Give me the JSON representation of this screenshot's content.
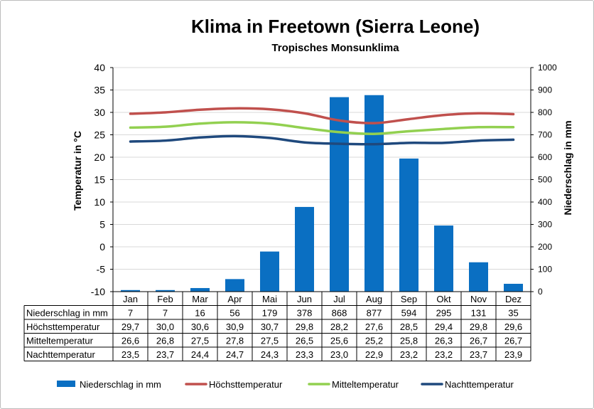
{
  "chart_data": {
    "type": "bar",
    "title": "Klima in Freetown (Sierra Leone)",
    "subtitle": "Tropisches Monsunklima",
    "categories": [
      "Jan",
      "Feb",
      "Mar",
      "Apr",
      "Mai",
      "Jun",
      "Jul",
      "Aug",
      "Sep",
      "Okt",
      "Nov",
      "Dez"
    ],
    "ylabel_left": "Temperatur in °C",
    "ylabel_right": "Niederschlag in mm",
    "ylim_left": [
      -10,
      40
    ],
    "ylim_right": [
      0,
      1000
    ],
    "yticks_left": [
      "40",
      "35",
      "30",
      "25",
      "20",
      "15",
      "10",
      "5",
      "0",
      "-5",
      "-10"
    ],
    "yticks_right": [
      "1000",
      "900",
      "800",
      "700",
      "600",
      "500",
      "400",
      "300",
      "200",
      "100",
      "0"
    ],
    "series": [
      {
        "name": "Niederschlag in mm",
        "kind": "bar",
        "axis": "right",
        "color": "#0a6fc2",
        "values": [
          7,
          7,
          16,
          56,
          179,
          378,
          868,
          877,
          594,
          295,
          131,
          35
        ],
        "labels": [
          "7",
          "7",
          "16",
          "56",
          "179",
          "378",
          "868",
          "877",
          "594",
          "295",
          "131",
          "35"
        ]
      },
      {
        "name": "Höchsttemperatur",
        "kind": "line",
        "axis": "left",
        "color": "#c0504d",
        "values": [
          29.7,
          30.0,
          30.6,
          30.9,
          30.7,
          29.8,
          28.2,
          27.6,
          28.5,
          29.4,
          29.8,
          29.6
        ],
        "labels": [
          "29,7",
          "30,0",
          "30,6",
          "30,9",
          "30,7",
          "29,8",
          "28,2",
          "27,6",
          "28,5",
          "29,4",
          "29,8",
          "29,6"
        ]
      },
      {
        "name": "Mitteltemperatur",
        "kind": "line",
        "axis": "left",
        "color": "#92d050",
        "values": [
          26.6,
          26.8,
          27.5,
          27.8,
          27.5,
          26.5,
          25.6,
          25.2,
          25.8,
          26.3,
          26.7,
          26.7
        ],
        "labels": [
          "26,6",
          "26,8",
          "27,5",
          "27,8",
          "27,5",
          "26,5",
          "25,6",
          "25,2",
          "25,8",
          "26,3",
          "26,7",
          "26,7"
        ]
      },
      {
        "name": "Nachttemperatur",
        "kind": "line",
        "axis": "left",
        "color": "#1f497d",
        "values": [
          23.5,
          23.7,
          24.4,
          24.7,
          24.3,
          23.3,
          23.0,
          22.9,
          23.2,
          23.2,
          23.7,
          23.9
        ],
        "labels": [
          "23,5",
          "23,7",
          "24,4",
          "24,7",
          "24,3",
          "23,3",
          "23,0",
          "22,9",
          "23,2",
          "23,2",
          "23,7",
          "23,9"
        ]
      }
    ],
    "grid": "horizontal",
    "legend": "bottom"
  }
}
